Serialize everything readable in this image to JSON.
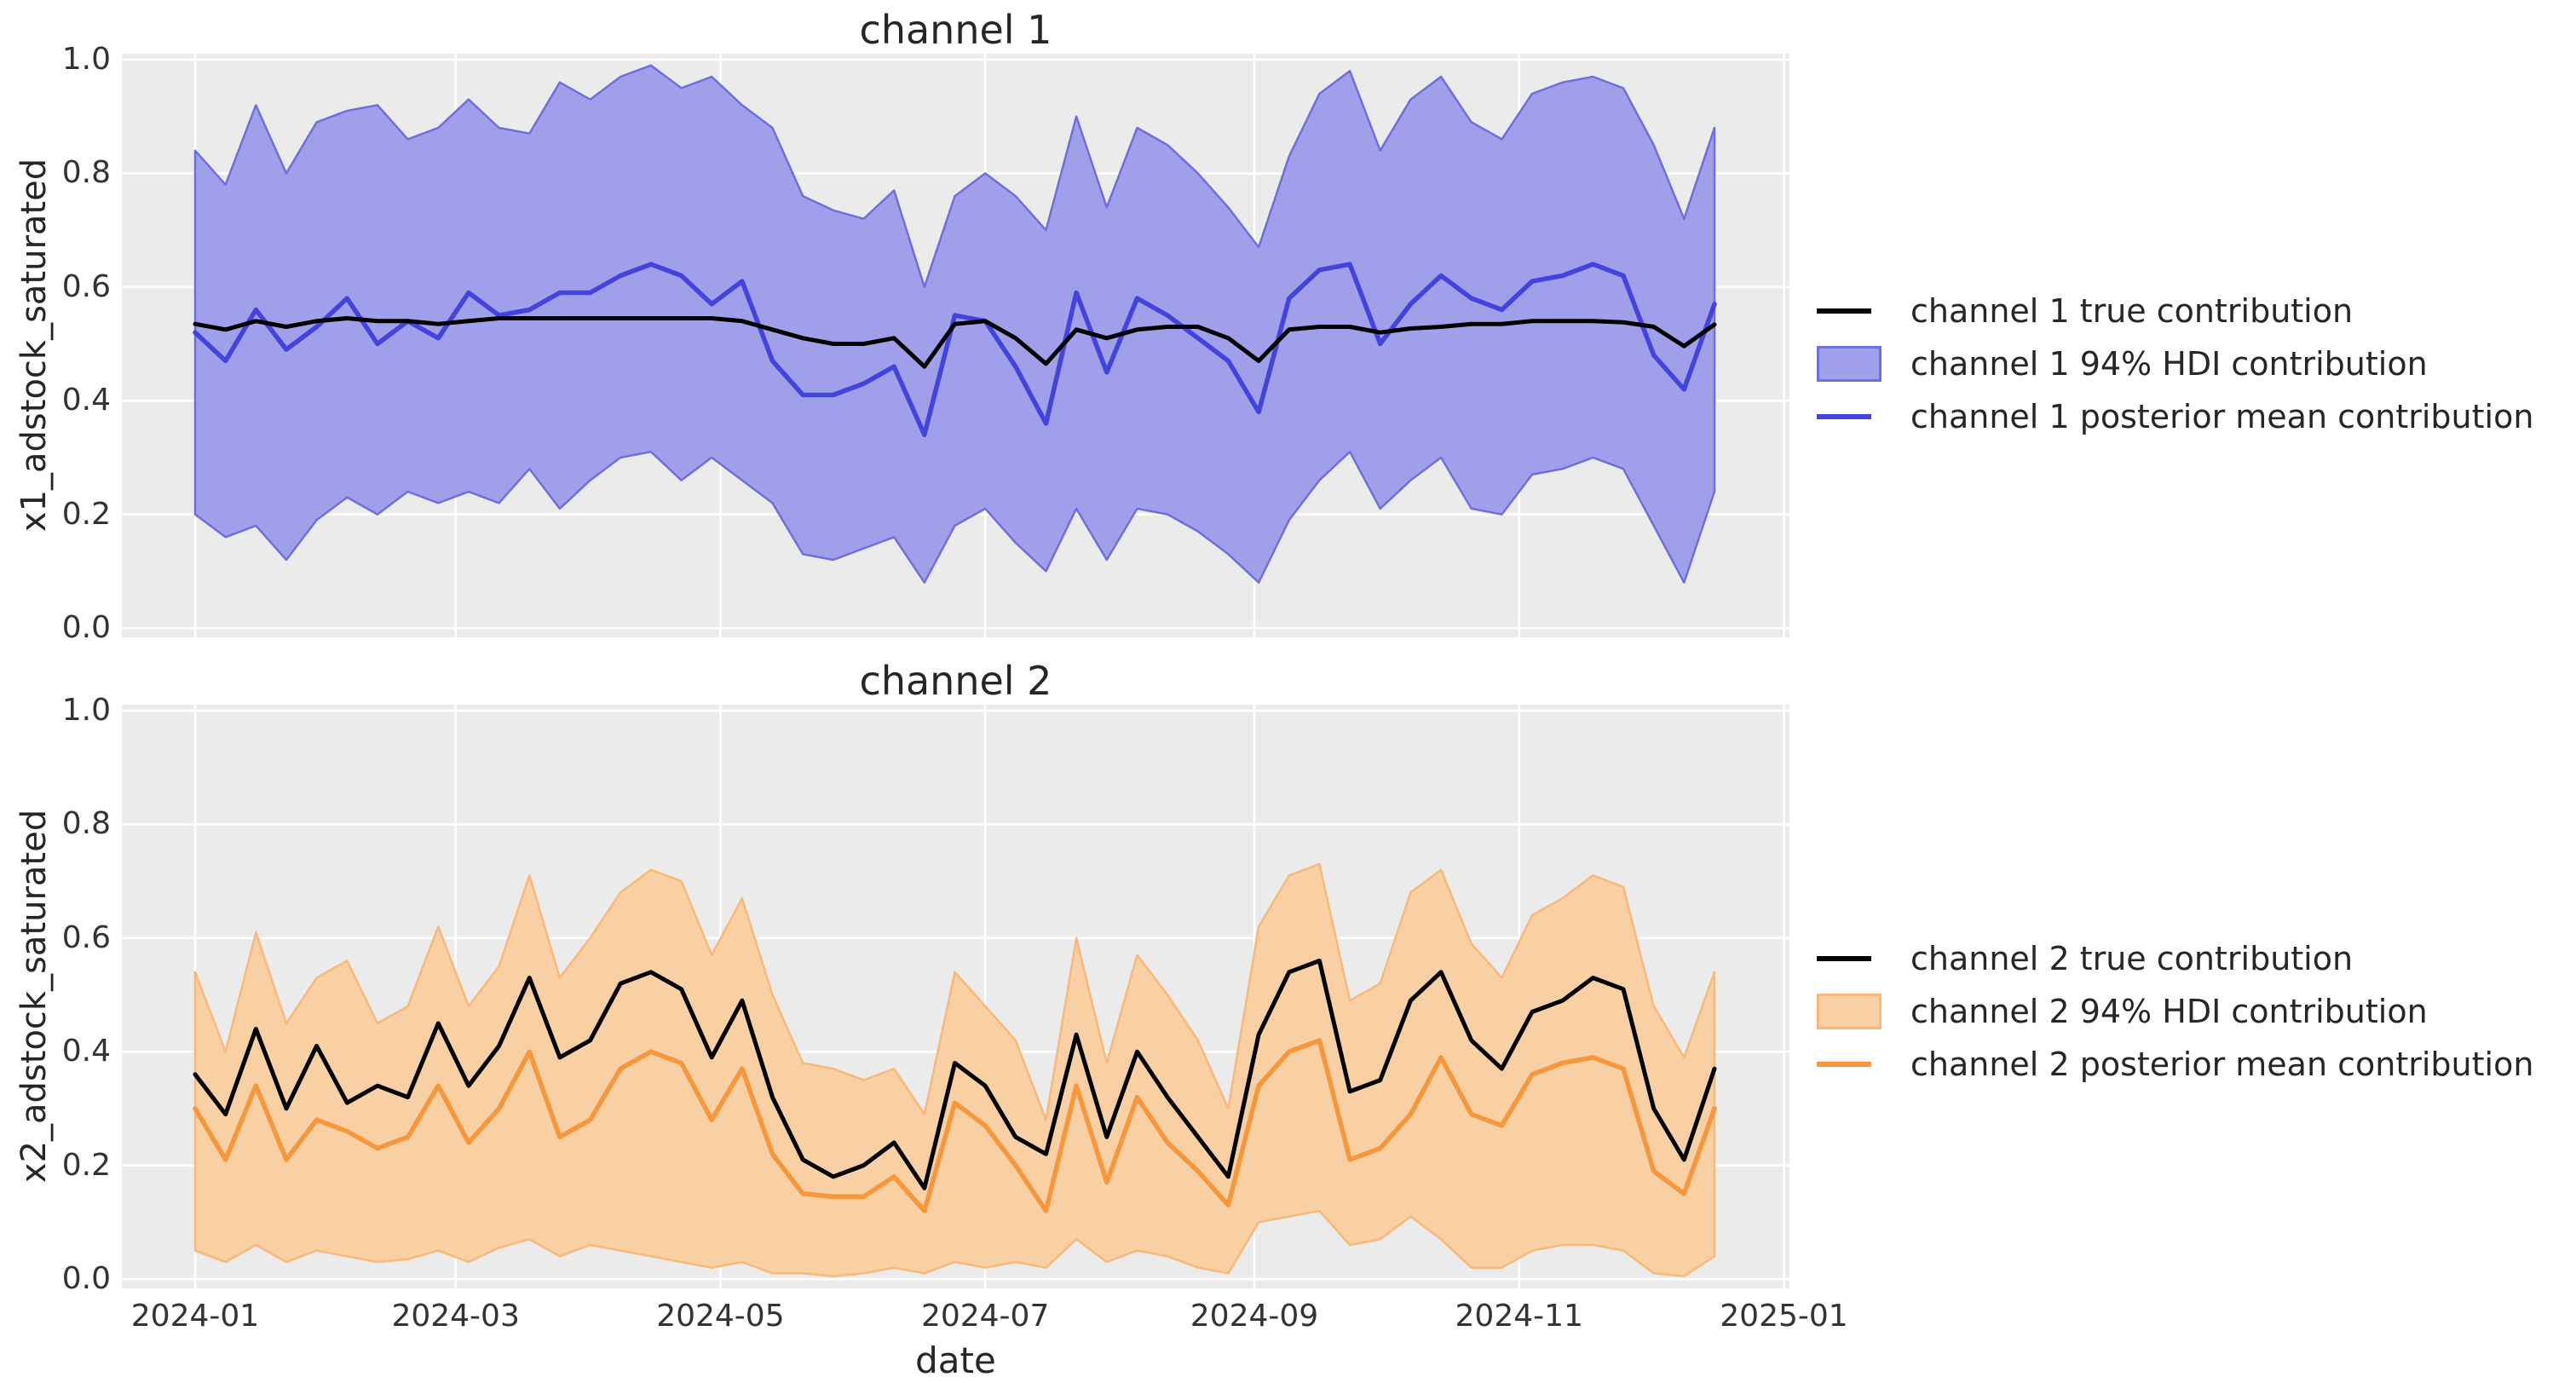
{
  "style": {
    "figure_bg": "#ffffff",
    "plot_bg": "#ebebeb",
    "grid_color": "#ffffff",
    "text_color": "#262626",
    "tick_color": "#333333"
  },
  "chart_data": [
    {
      "type": "line+band",
      "title": "channel 1",
      "ylabel": "x1_adstock_saturated",
      "xlabel": "",
      "ylim": [
        0.0,
        1.0
      ],
      "grid": true,
      "legend_position": "right",
      "x_start": "2024-01-01",
      "x_freq_days": 7,
      "n_points": 51,
      "y_ticks": [
        0.0,
        0.2,
        0.4,
        0.6,
        0.8,
        1.0
      ],
      "y_tick_labels": [
        "0.0",
        "0.2",
        "0.4",
        "0.6",
        "0.8",
        "1.0"
      ],
      "x_tick_labels": [],
      "x_tick_days": [
        0,
        60,
        121,
        182,
        244,
        305,
        366
      ],
      "series": [
        {
          "name": "channel 1 true contribution",
          "type": "line",
          "color": "#000000",
          "values": [
            0.535,
            0.525,
            0.54,
            0.53,
            0.54,
            0.545,
            0.54,
            0.54,
            0.535,
            0.54,
            0.545,
            0.545,
            0.545,
            0.545,
            0.545,
            0.545,
            0.545,
            0.545,
            0.54,
            0.525,
            0.51,
            0.5,
            0.5,
            0.51,
            0.46,
            0.535,
            0.54,
            0.51,
            0.465,
            0.525,
            0.51,
            0.525,
            0.53,
            0.53,
            0.51,
            0.47,
            0.525,
            0.53,
            0.53,
            0.52,
            0.527,
            0.53,
            0.535,
            0.535,
            0.54,
            0.54,
            0.54,
            0.538,
            0.53,
            0.496,
            0.534
          ]
        },
        {
          "name": "channel 1 94% HDI contribution",
          "type": "band",
          "fill": "#a0a0ea",
          "edge": "#6e6ee0",
          "upper": [
            0.84,
            0.78,
            0.92,
            0.8,
            0.89,
            0.91,
            0.92,
            0.86,
            0.88,
            0.93,
            0.88,
            0.87,
            0.96,
            0.93,
            0.97,
            0.99,
            0.95,
            0.97,
            0.92,
            0.88,
            0.76,
            0.735,
            0.72,
            0.77,
            0.6,
            0.76,
            0.8,
            0.76,
            0.7,
            0.9,
            0.74,
            0.88,
            0.85,
            0.8,
            0.74,
            0.67,
            0.83,
            0.94,
            0.98,
            0.84,
            0.93,
            0.97,
            0.89,
            0.86,
            0.94,
            0.96,
            0.97,
            0.95,
            0.85,
            0.72,
            0.88
          ],
          "lower": [
            0.2,
            0.16,
            0.18,
            0.12,
            0.19,
            0.23,
            0.2,
            0.24,
            0.22,
            0.24,
            0.22,
            0.28,
            0.21,
            0.26,
            0.3,
            0.31,
            0.26,
            0.3,
            0.26,
            0.22,
            0.13,
            0.12,
            0.14,
            0.16,
            0.08,
            0.18,
            0.21,
            0.15,
            0.1,
            0.21,
            0.12,
            0.21,
            0.2,
            0.17,
            0.13,
            0.08,
            0.19,
            0.26,
            0.31,
            0.21,
            0.26,
            0.3,
            0.21,
            0.2,
            0.27,
            0.28,
            0.3,
            0.28,
            0.18,
            0.08,
            0.24
          ]
        },
        {
          "name": "channel 1 posterior mean contribution",
          "type": "line",
          "color": "#4343de",
          "values": [
            0.52,
            0.47,
            0.56,
            0.49,
            0.53,
            0.58,
            0.5,
            0.54,
            0.51,
            0.59,
            0.55,
            0.56,
            0.59,
            0.59,
            0.62,
            0.64,
            0.62,
            0.57,
            0.61,
            0.47,
            0.41,
            0.41,
            0.43,
            0.46,
            0.34,
            0.55,
            0.54,
            0.46,
            0.36,
            0.59,
            0.45,
            0.58,
            0.55,
            0.51,
            0.47,
            0.38,
            0.58,
            0.63,
            0.64,
            0.5,
            0.57,
            0.62,
            0.58,
            0.56,
            0.61,
            0.62,
            0.64,
            0.62,
            0.48,
            0.42,
            0.57
          ]
        }
      ]
    },
    {
      "type": "line+band",
      "title": "channel 2",
      "ylabel": "x2_adstock_saturated",
      "xlabel": "date",
      "ylim": [
        0.0,
        1.0
      ],
      "grid": true,
      "legend_position": "right",
      "x_start": "2024-01-01",
      "x_freq_days": 7,
      "n_points": 51,
      "y_ticks": [
        0.0,
        0.2,
        0.4,
        0.6,
        0.8,
        1.0
      ],
      "y_tick_labels": [
        "0.0",
        "0.2",
        "0.4",
        "0.6",
        "0.8",
        "1.0"
      ],
      "x_tick_labels": [
        "2024-01",
        "2024-03",
        "2024-05",
        "2024-07",
        "2024-09",
        "2024-11",
        "2025-01"
      ],
      "x_tick_days": [
        0,
        60,
        121,
        182,
        244,
        305,
        366
      ],
      "series": [
        {
          "name": "channel 2 true contribution",
          "type": "line",
          "color": "#000000",
          "values": [
            0.36,
            0.29,
            0.44,
            0.3,
            0.41,
            0.31,
            0.34,
            0.32,
            0.45,
            0.34,
            0.41,
            0.53,
            0.39,
            0.42,
            0.52,
            0.54,
            0.51,
            0.39,
            0.49,
            0.32,
            0.21,
            0.18,
            0.2,
            0.24,
            0.16,
            0.38,
            0.34,
            0.25,
            0.22,
            0.43,
            0.25,
            0.4,
            0.32,
            0.25,
            0.18,
            0.43,
            0.54,
            0.56,
            0.33,
            0.35,
            0.49,
            0.54,
            0.42,
            0.37,
            0.47,
            0.49,
            0.53,
            0.51,
            0.3,
            0.21,
            0.37
          ]
        },
        {
          "name": "channel 2 94% HDI contribution",
          "type": "band",
          "fill": "#f8d0a4",
          "edge": "#f9b878",
          "upper": [
            0.54,
            0.4,
            0.61,
            0.45,
            0.53,
            0.56,
            0.45,
            0.48,
            0.62,
            0.48,
            0.55,
            0.71,
            0.53,
            0.6,
            0.68,
            0.72,
            0.7,
            0.57,
            0.67,
            0.5,
            0.38,
            0.37,
            0.35,
            0.37,
            0.29,
            0.54,
            0.48,
            0.42,
            0.28,
            0.6,
            0.38,
            0.57,
            0.5,
            0.42,
            0.3,
            0.62,
            0.71,
            0.73,
            0.49,
            0.52,
            0.68,
            0.72,
            0.59,
            0.53,
            0.64,
            0.67,
            0.71,
            0.69,
            0.48,
            0.39,
            0.54
          ],
          "lower": [
            0.05,
            0.03,
            0.06,
            0.03,
            0.05,
            0.04,
            0.03,
            0.035,
            0.05,
            0.03,
            0.055,
            0.07,
            0.04,
            0.06,
            0.05,
            0.04,
            0.03,
            0.02,
            0.03,
            0.01,
            0.01,
            0.005,
            0.01,
            0.02,
            0.01,
            0.03,
            0.02,
            0.03,
            0.02,
            0.07,
            0.03,
            0.05,
            0.04,
            0.02,
            0.01,
            0.1,
            0.11,
            0.12,
            0.06,
            0.07,
            0.11,
            0.07,
            0.02,
            0.02,
            0.05,
            0.06,
            0.06,
            0.05,
            0.01,
            0.005,
            0.04
          ]
        },
        {
          "name": "channel 2 posterior mean contribution",
          "type": "line",
          "color": "#f8963c",
          "values": [
            0.3,
            0.21,
            0.34,
            0.21,
            0.28,
            0.26,
            0.23,
            0.25,
            0.34,
            0.24,
            0.3,
            0.4,
            0.25,
            0.28,
            0.37,
            0.4,
            0.38,
            0.28,
            0.37,
            0.22,
            0.15,
            0.145,
            0.145,
            0.18,
            0.12,
            0.31,
            0.27,
            0.2,
            0.12,
            0.34,
            0.17,
            0.32,
            0.24,
            0.19,
            0.13,
            0.34,
            0.4,
            0.42,
            0.21,
            0.23,
            0.29,
            0.39,
            0.29,
            0.27,
            0.36,
            0.38,
            0.39,
            0.37,
            0.19,
            0.15,
            0.3
          ]
        }
      ]
    }
  ]
}
